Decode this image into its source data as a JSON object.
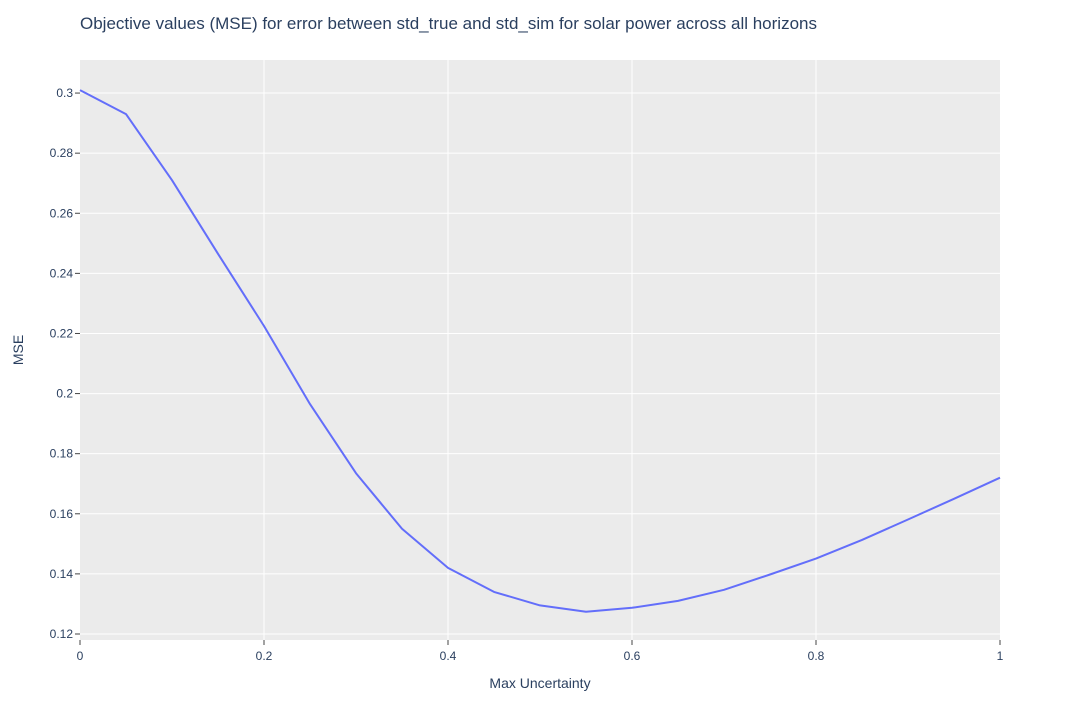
{
  "chart_data": {
    "type": "line",
    "title": "Objective values (MSE) for error between std_true and std_sim for solar power across all horizons",
    "xlabel": "Max Uncertainty",
    "ylabel": "MSE",
    "xlim": [
      0,
      1
    ],
    "ylim": [
      0.118,
      0.311
    ],
    "x_ticks": [
      0,
      0.2,
      0.4,
      0.6,
      0.8,
      1
    ],
    "x_tick_labels": [
      "0",
      "0.2",
      "0.4",
      "0.6",
      "0.8",
      "1"
    ],
    "y_ticks": [
      0.12,
      0.14,
      0.16,
      0.18,
      0.2,
      0.22,
      0.24,
      0.26,
      0.28,
      0.3
    ],
    "y_tick_labels": [
      "0.12",
      "0.14",
      "0.16",
      "0.18",
      "0.2",
      "0.22",
      "0.24",
      "0.26",
      "0.28",
      "0.3"
    ],
    "grid": true,
    "colors": {
      "line": "#636efa",
      "plot_bg": "#ebebeb",
      "grid": "#ffffff",
      "text": "#2a3f5f"
    },
    "series": [
      {
        "x": [
          0,
          0.05,
          0.1,
          0.15,
          0.2,
          0.25,
          0.3,
          0.35,
          0.4,
          0.45,
          0.5,
          0.55,
          0.6,
          0.65,
          0.7,
          0.75,
          0.8,
          0.85,
          0.9,
          0.95,
          1
        ],
        "values": [
          0.301,
          0.293,
          0.271,
          0.2465,
          0.2225,
          0.1965,
          0.1735,
          0.155,
          0.142,
          0.134,
          0.1295,
          0.1274,
          0.1287,
          0.131,
          0.1347,
          0.1398,
          0.1451,
          0.1513,
          0.1581,
          0.165,
          0.172
        ]
      }
    ]
  }
}
